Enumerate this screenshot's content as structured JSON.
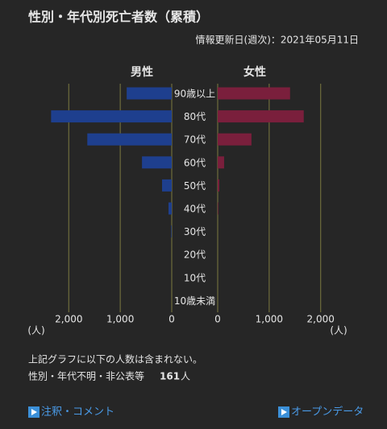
{
  "chart_data": {
    "type": "pyramid",
    "title": "性別・年代別死亡者数（累積）",
    "subtitle": "情報更新日(週次)：2021年05月11日",
    "categories": [
      "90歳以上",
      "80代",
      "70代",
      "60代",
      "50代",
      "40代",
      "30代",
      "20代",
      "10代",
      "10歳未満"
    ],
    "series": [
      {
        "name": "男性",
        "color": "#1e3f8e",
        "values": [
          875,
          2344,
          1640,
          578,
          188,
          63,
          10,
          0,
          0,
          0
        ]
      },
      {
        "name": "女性",
        "color": "#7a1f3c",
        "values": [
          1406,
          1672,
          656,
          125,
          31,
          10,
          0,
          0,
          0,
          0
        ]
      }
    ],
    "xlim": [
      0,
      2600
    ],
    "xticks": [
      0,
      {
        "value": 1000,
        "label": "1,000"
      },
      {
        "value": 2000,
        "label": "2,000"
      }
    ],
    "xlabel": "(人)",
    "grid": true
  },
  "notes": {
    "text": "上記グラフに以下の人数は含まれない。",
    "item": "性別・年代不明・非公表等",
    "count": 161,
    "unit": "人"
  },
  "links": [
    "注釈・コメント",
    "オープンデータ"
  ]
}
